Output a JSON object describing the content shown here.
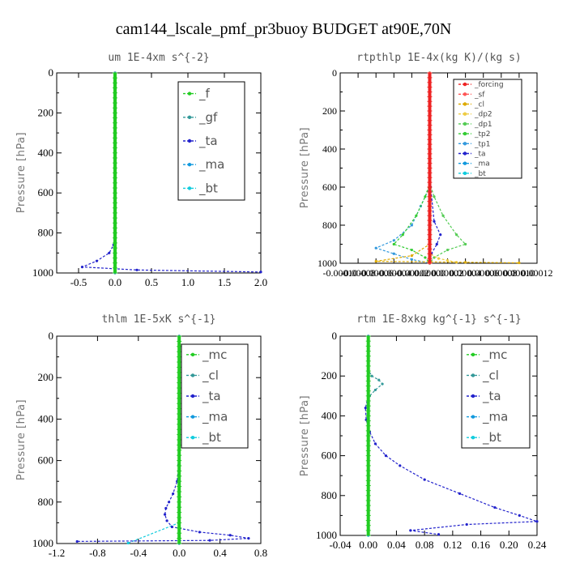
{
  "figure": {
    "title": "cam144_lscale_pmf_pr3buoy  BUDGET at90E,70N"
  },
  "colors": {
    "f": "#22cc22",
    "gf": "#339999",
    "ta": "#2222cc",
    "ma": "#1199dd",
    "bt": "#11ccdd",
    "mc": "#22cc22",
    "cl": "#339999",
    "forcing": "#ee2222",
    "sf": "#ff5555",
    "cl_small": "#ddaa00",
    "dp2": "#eecc44",
    "dp1": "#55cc55",
    "tp2": "#33cc33",
    "tp1": "#3399dd"
  },
  "chart_data": [
    {
      "type": "line",
      "title": "um  1E-4xm s^{-2}",
      "ylabel": "Pressure [hPa]",
      "xlim": [
        -0.8,
        2.0
      ],
      "ylim": [
        1000,
        0
      ],
      "xticks": [
        "-0.5",
        "0.0",
        "0.5",
        "1.0",
        "1.5",
        "2.0"
      ],
      "yticks": [
        "0",
        "200",
        "400",
        "600",
        "800",
        "1000"
      ],
      "legend": "top-right",
      "series": [
        {
          "name": "_f",
          "x": [
            0,
            0,
            0,
            0,
            0,
            0,
            0,
            0,
            0,
            0,
            0
          ],
          "y": [
            0,
            100,
            200,
            300,
            400,
            500,
            600,
            700,
            800,
            900,
            1000
          ]
        },
        {
          "name": "_gf",
          "x": [
            0,
            0,
            0,
            0,
            0,
            0
          ],
          "y": [
            0,
            200,
            400,
            600,
            800,
            1000
          ]
        },
        {
          "name": "_ta",
          "x": [
            0,
            0,
            0,
            -0.02,
            -0.08,
            -0.25,
            -0.45,
            0.3,
            2.0
          ],
          "y": [
            0,
            400,
            800,
            860,
            900,
            940,
            970,
            985,
            995
          ]
        },
        {
          "name": "_ma",
          "x": [
            0,
            0,
            0
          ],
          "y": [
            0,
            500,
            1000
          ]
        },
        {
          "name": "_bt",
          "x": [
            0,
            0,
            0
          ],
          "y": [
            0,
            500,
            1000
          ]
        }
      ]
    },
    {
      "type": "line",
      "title": "rtpthlp  1E-4x(kg K)/(kg s)",
      "ylabel": "Pressure [hPa]",
      "xlim": [
        -0.0001,
        0.00012
      ],
      "ylim": [
        1000,
        0
      ],
      "xticks": [
        "-0.00010",
        "-0.00008",
        "-0.00006",
        "-0.00004",
        "-0.00002",
        "0.00000",
        "0.00002",
        "0.00004",
        "0.00006",
        "0.00008",
        "0.00010",
        "0.00012"
      ],
      "yticks": [
        "0",
        "200",
        "400",
        "600",
        "800",
        "1000"
      ],
      "legend": "top-right",
      "series": [
        {
          "name": "_forcing",
          "x": [
            0,
            0,
            0
          ],
          "y": [
            0,
            500,
            1000
          ]
        },
        {
          "name": "_sf",
          "x": [
            0,
            0,
            0
          ],
          "y": [
            0,
            500,
            1000
          ]
        },
        {
          "name": "_cl",
          "x": [
            0,
            0,
            -2e-05,
            -6e-05,
            4e-05,
            0.0001
          ],
          "y": [
            0,
            900,
            960,
            990,
            995,
            998
          ]
        },
        {
          "name": "_dp2",
          "x": [
            0,
            0,
            1e-05,
            2e-05,
            3e-05
          ],
          "y": [
            0,
            950,
            975,
            985,
            995
          ]
        },
        {
          "name": "_dp1",
          "x": [
            0,
            0,
            5e-06,
            1.5e-05,
            3e-05,
            4e-05,
            2e-05,
            5e-06,
            0
          ],
          "y": [
            0,
            580,
            650,
            750,
            850,
            900,
            930,
            970,
            1000
          ]
        },
        {
          "name": "_tp2",
          "x": [
            0,
            0,
            -5e-06,
            -1.5e-05,
            -3e-05,
            -4e-05,
            -2e-05,
            -5e-06,
            0
          ],
          "y": [
            0,
            580,
            650,
            750,
            850,
            900,
            930,
            970,
            1000
          ]
        },
        {
          "name": "_tp1",
          "x": [
            0,
            0,
            -1e-05,
            -2e-05,
            -4e-05,
            -6e-05,
            -4e-05,
            -2e-05,
            0
          ],
          "y": [
            0,
            600,
            700,
            800,
            880,
            920,
            950,
            980,
            1000
          ]
        },
        {
          "name": "_ta",
          "x": [
            0,
            0,
            1e-06,
            5e-06,
            1.2e-05,
            8e-06,
            2e-06,
            0
          ],
          "y": [
            0,
            400,
            600,
            780,
            850,
            900,
            950,
            1000
          ]
        },
        {
          "name": "_ma",
          "x": [
            0,
            0,
            0
          ],
          "y": [
            0,
            500,
            1000
          ]
        },
        {
          "name": "_bt",
          "x": [
            0,
            0,
            0
          ],
          "y": [
            0,
            500,
            1000
          ]
        }
      ]
    },
    {
      "type": "line",
      "title": "thlm  1E-5xK s^{-1}",
      "ylabel": "Pressure [hPa]",
      "xlim": [
        -1.2,
        0.8
      ],
      "ylim": [
        1000,
        0
      ],
      "xticks": [
        "-1.2",
        "-0.8",
        "-0.4",
        "0.0",
        "0.4",
        "0.8"
      ],
      "yticks": [
        "0",
        "200",
        "400",
        "600",
        "800",
        "1000"
      ],
      "legend": "top-right",
      "series": [
        {
          "name": "_mc",
          "x": [
            0,
            0,
            0,
            0,
            0,
            0
          ],
          "y": [
            0,
            200,
            400,
            600,
            800,
            1000
          ]
        },
        {
          "name": "_cl",
          "x": [
            0,
            0,
            0,
            0
          ],
          "y": [
            0,
            400,
            800,
            1000
          ]
        },
        {
          "name": "_ta",
          "x": [
            0,
            0,
            -0.005,
            -0.02,
            -0.06,
            -0.1,
            -0.13,
            -0.14,
            -0.12,
            -0.07,
            0.2,
            0.5,
            0.68,
            0.3,
            -1.0
          ],
          "y": [
            0,
            500,
            620,
            700,
            760,
            800,
            830,
            860,
            890,
            920,
            945,
            960,
            975,
            985,
            990
          ]
        },
        {
          "name": "_ma",
          "x": [
            0,
            0,
            0
          ],
          "y": [
            0,
            500,
            1000
          ]
        },
        {
          "name": "_bt",
          "x": [
            0,
            0,
            -0.5
          ],
          "y": [
            0,
            900,
            998
          ]
        }
      ]
    },
    {
      "type": "line",
      "title": "rtm  1E-8xkg kg^{-1} s^{-1}",
      "ylabel": "Pressure [hPa]",
      "xlim": [
        -0.04,
        0.24
      ],
      "ylim": [
        1000,
        0
      ],
      "xticks": [
        "-0.04",
        "0.00",
        "0.04",
        "0.08",
        "0.12",
        "0.16",
        "0.20",
        "0.24"
      ],
      "yticks": [
        "0",
        "200",
        "400",
        "600",
        "800",
        "1000"
      ],
      "legend": "top-right",
      "series": [
        {
          "name": "_mc",
          "x": [
            0,
            0,
            0,
            0,
            0,
            0
          ],
          "y": [
            0,
            200,
            400,
            600,
            800,
            1000
          ]
        },
        {
          "name": "_cl",
          "x": [
            0,
            0,
            0.005,
            0.015,
            0.02,
            0.01,
            0.002,
            0
          ],
          "y": [
            0,
            170,
            200,
            220,
            240,
            270,
            300,
            330
          ]
        },
        {
          "name": "_ta",
          "x": [
            0,
            0,
            -0.004,
            -0.003,
            0.002,
            0.01,
            0.025,
            0.045,
            0.08,
            0.13,
            0.18,
            0.215,
            0.24,
            0.14,
            0.06,
            0.1
          ],
          "y": [
            0,
            300,
            360,
            420,
            480,
            540,
            600,
            650,
            720,
            790,
            860,
            900,
            930,
            945,
            975,
            995
          ]
        },
        {
          "name": "_ma",
          "x": [
            0,
            0,
            0
          ],
          "y": [
            0,
            500,
            1000
          ]
        },
        {
          "name": "_bt",
          "x": [
            0,
            0,
            0
          ],
          "y": [
            0,
            500,
            1000
          ]
        }
      ]
    }
  ]
}
